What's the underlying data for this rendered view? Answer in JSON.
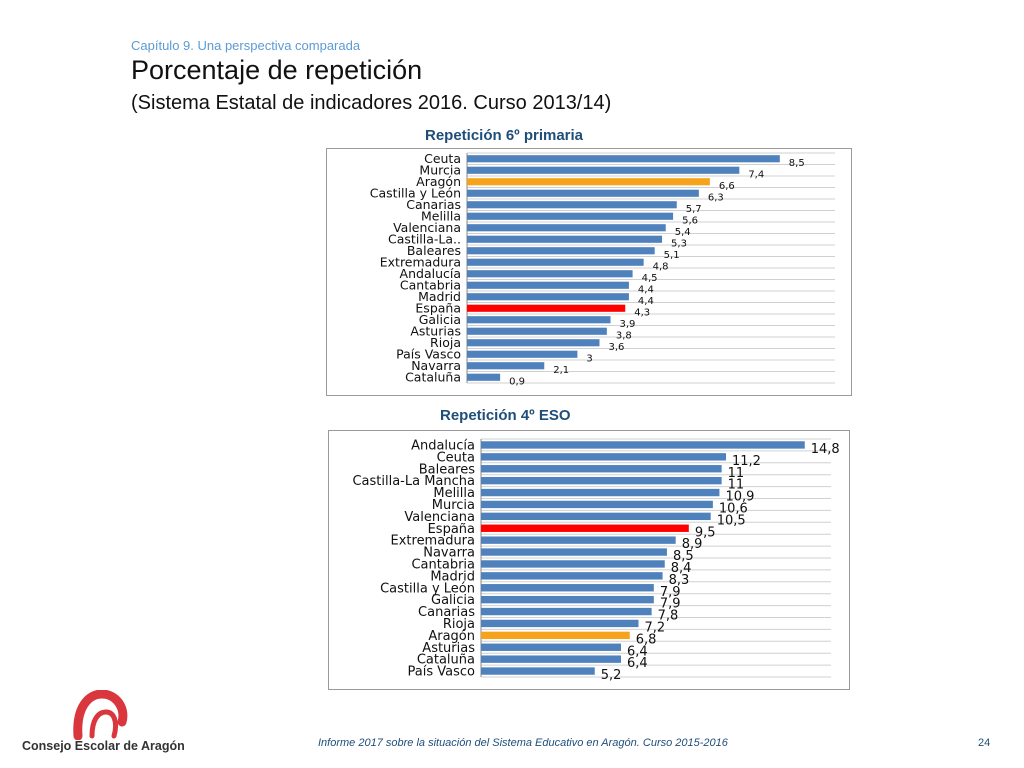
{
  "header": {
    "chapter": "Capítulo 9. Una perspectiva comparada",
    "title": "Porcentaje de repetición",
    "subtitle": "(Sistema Estatal de indicadores 2016. Curso 2013/14)"
  },
  "colors": {
    "bar": "#4f81bd",
    "highlight_aragon": "#f7a21b",
    "highlight_espana": "#ff0000",
    "heading": "#1f4e79"
  },
  "chart_data": [
    {
      "type": "bar",
      "orientation": "horizontal",
      "title": "Repetición 6º primaria",
      "categories": [
        "Ceuta",
        "Murcia",
        "Aragón",
        "Castilla y León",
        "Canarias",
        "Melilla",
        "Valenciana",
        "Castilla-La..",
        "Baleares",
        "Extremadura",
        "Andalucía",
        "Cantabria",
        "Madrid",
        "España",
        "Galicia",
        "Asturias",
        "Rioja",
        "País Vasco",
        "Navarra",
        "Cataluña"
      ],
      "values": [
        8.5,
        7.4,
        6.6,
        6.3,
        5.7,
        5.6,
        5.4,
        5.3,
        5.1,
        4.8,
        4.5,
        4.4,
        4.4,
        4.3,
        3.9,
        3.8,
        3.6,
        3,
        2.1,
        0.9
      ],
      "value_labels": [
        "8,5",
        "7,4",
        "6,6",
        "6,3",
        "5,7",
        "5,6",
        "5,4",
        "5,3",
        "5,1",
        "4,8",
        "4,5",
        "4,4",
        "4,4",
        "4,3",
        "3,9",
        "3,8",
        "3,6",
        "3",
        "2,1",
        "0,9"
      ],
      "highlights": {
        "Aragón": "#f7a21b",
        "España": "#ff0000"
      },
      "xlim": [
        0,
        10
      ],
      "grid": "horizontal"
    },
    {
      "type": "bar",
      "orientation": "horizontal",
      "title": "Repetición 4º ESO",
      "categories": [
        "Andalucía",
        "Ceuta",
        "Baleares",
        "Castilla-La Mancha",
        "Melilla",
        "Murcia",
        "Valenciana",
        "España",
        "Extremadura",
        "Navarra",
        "Cantabria",
        "Madrid",
        "Castilla y León",
        "Galicia",
        "Canarias",
        "Rioja",
        "Aragón",
        "Asturias",
        "Cataluña",
        "País Vasco"
      ],
      "values": [
        14.8,
        11.2,
        11,
        11,
        10.9,
        10.6,
        10.5,
        9.5,
        8.9,
        8.5,
        8.4,
        8.3,
        7.9,
        7.9,
        7.8,
        7.2,
        6.8,
        6.4,
        6.4,
        5.2
      ],
      "value_labels": [
        "14,8",
        "11,2",
        "11",
        "11",
        "10,9",
        "10,6",
        "10,5",
        "9,5",
        "8,9",
        "8,5",
        "8,4",
        "8,3",
        "7,9",
        "7,9",
        "7,8",
        "7,2",
        "6,8",
        "6,4",
        "6,4",
        "5,2"
      ],
      "highlights": {
        "Aragón": "#f7a21b",
        "España": "#ff0000"
      },
      "xlim": [
        0,
        16
      ],
      "grid": "horizontal"
    }
  ],
  "logo": {
    "name": "Consejo Escolar de Aragón",
    "accent_color": "#d9363e"
  },
  "footer": {
    "text": "Informe 2017 sobre la situación del Sistema Educativo en Aragón. Curso 2015-2016",
    "page": "24"
  }
}
